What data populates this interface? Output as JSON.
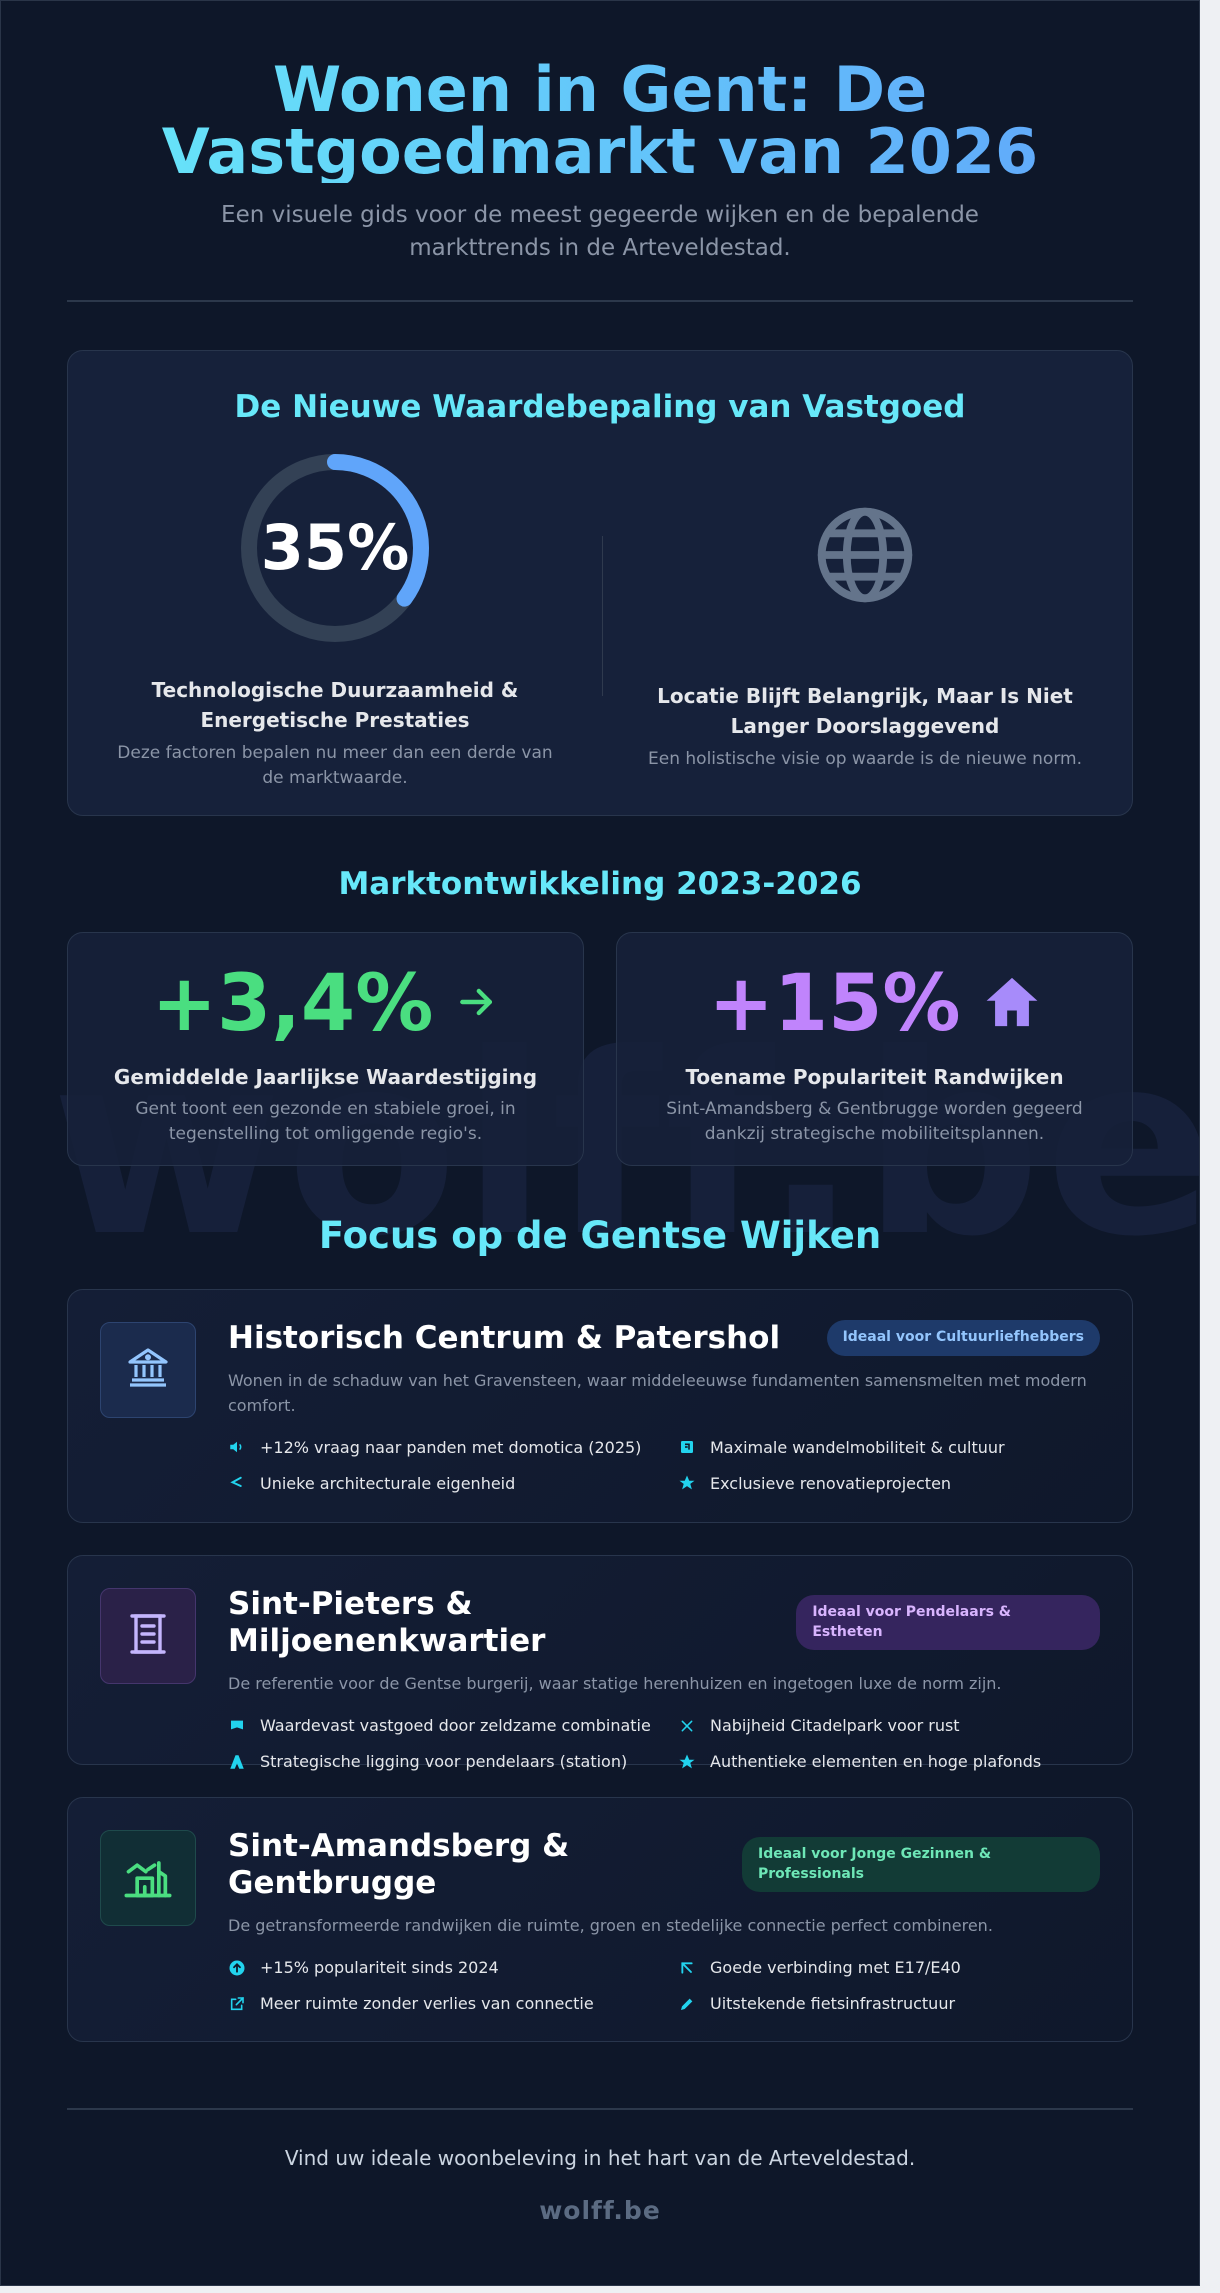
{
  "hero": {
    "title_line1": "Wonen in Gent: De",
    "title_line2": "Vastgoedmarkt van 2026",
    "subtitle": "Een visuele gids voor de meest gegeerde wijken en de bepalende markttrends in de Arteveldestad."
  },
  "value_section": {
    "title": "De Nieuwe Waardebepaling van Vastgoed",
    "ring": {
      "percent_label": "35%",
      "fraction": 0.35,
      "color": "#60a5fa"
    },
    "left_title": "Technologische Duurzaamheid & Energetische Prestaties",
    "left_sub": "Deze factoren bepalen nu meer dan een derde van de marktwaarde.",
    "right_icon": "globe-icon",
    "right_title": "Locatie Blijft Belangrijk, Maar Is Niet Langer Doorslaggevend",
    "right_sub": "Een holistische visie op waarde is de nieuwe norm."
  },
  "market": {
    "title": "Marktontwikkeling 2023-2026",
    "stats": [
      {
        "value": "+3,4%",
        "icon": "arrow-right-icon",
        "color": "#4ade80",
        "label": "Gemiddelde Jaarlijkse Waardestijging",
        "sub": "Gent toont een gezonde en stabiele groei, in tegenstelling tot omliggende regio's."
      },
      {
        "value": "+15%",
        "icon": "house-icon",
        "color": "#c084fc",
        "label": "Toename Populariteit Randwijken",
        "sub": "Sint-Amandsberg & Gentbrugge worden gegeerd dankzij strategische mobiliteitsplannen."
      }
    ]
  },
  "wijken": {
    "title": "Focus op de Gentse Wijken",
    "items": [
      {
        "name": "Historisch Centrum & Patershol",
        "badge": "Ideaal voor Cultuurliefhebbers",
        "desc": "Wonen in de schaduw van het Gravensteen, waar middeleeuwse fundamenten samensmelten met modern comfort.",
        "icon": "museum-icon",
        "accent": "#60a5fa",
        "features": [
          {
            "text": "+12% vraag naar panden met domotica (2025)",
            "icon": "speaker-icon"
          },
          {
            "text": "Maximale wandelmobiliteit & cultuur",
            "icon": "exit-icon"
          },
          {
            "text": "Unieke architecturale eigenheid",
            "icon": "chevron-left-icon"
          },
          {
            "text": "Exclusieve renovatieprojecten",
            "icon": "star-icon"
          }
        ]
      },
      {
        "name": "Sint-Pieters & Miljoenenkwartier",
        "badge": "Ideaal voor Pendelaars & Estheten",
        "desc": "De referentie voor de Gentse burgerij, waar statige herenhuizen en ingetogen luxe de norm zijn.",
        "icon": "building-icon",
        "accent": "#c084fc",
        "features": [
          {
            "text": "Waardevast vastgoed door zeldzame combinatie",
            "icon": "flag-icon"
          },
          {
            "text": "Nabijheid Citadelpark voor rust",
            "icon": "close-icon"
          },
          {
            "text": "Strategische ligging voor pendelaars (station)",
            "icon": "road-icon"
          },
          {
            "text": "Authentieke elementen en hoge plafonds",
            "icon": "star-icon"
          }
        ]
      },
      {
        "name": "Sint-Amandsberg & Gentbrugge",
        "badge": "Ideaal voor Jonge Gezinnen & Professionals",
        "desc": "De getransformeerde randwijken die ruimte, groen en stedelijke connectie perfect combineren.",
        "icon": "family-home-icon",
        "accent": "#4ade80",
        "features": [
          {
            "text": "+15% populariteit sinds 2024",
            "icon": "arrow-up-circle-icon"
          },
          {
            "text": "Goede verbinding met E17/E40",
            "icon": "arrow-diagonal-icon"
          },
          {
            "text": "Meer ruimte zonder verlies van connectie",
            "icon": "external-link-icon"
          },
          {
            "text": "Uitstekende fietsinfrastructuur",
            "icon": "pencil-icon"
          }
        ]
      }
    ]
  },
  "footer": {
    "text": "Vind uw ideale woonbeleving in het hart van de Arteveldestad.",
    "brand": "wolff.be",
    "watermark": "wolff.be"
  }
}
